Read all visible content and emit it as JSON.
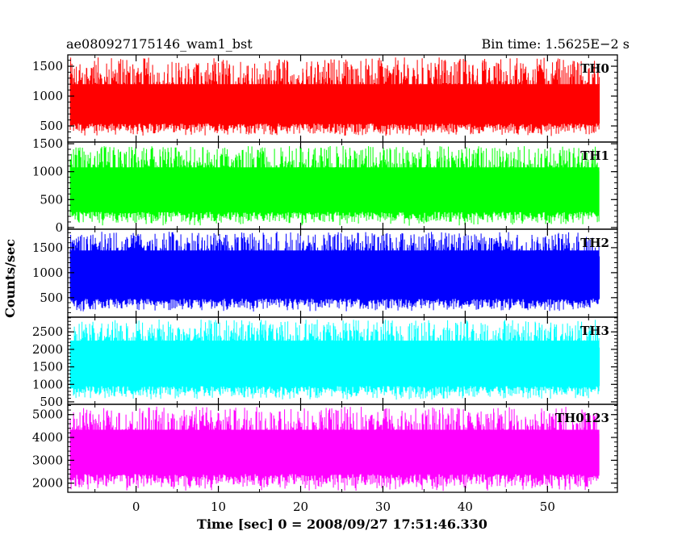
{
  "header": {
    "left_title": "ae080927175146_wam1_bst",
    "right_title": "Bin time: 1.5625E−2 s"
  },
  "axes": {
    "ylabel": "Counts/sec",
    "xlabel": "Time [sec] 0 = 2008/09/27 17:51:46.330"
  },
  "chart_data": {
    "type": "line",
    "title": "ae080927175146_wam1_bst",
    "subtitle": "Bin time: 1.5625E−2 s",
    "xlabel": "Time [sec] 0 = 2008/09/27 17:51:46.330",
    "ylabel": "Counts/sec",
    "xlim": [
      -8.3,
      58.5
    ],
    "data_xrange": [
      -8.0,
      56.3
    ],
    "x_ticks": [
      "0",
      "10",
      "20",
      "30",
      "40",
      "50"
    ],
    "x_tick_values": [
      0,
      10,
      20,
      30,
      40,
      50
    ],
    "grid": false,
    "panels": [
      {
        "name": "TH0",
        "color": "#ff0000",
        "ylim": [
          230,
          1690
        ],
        "y_ticks": [
          "500",
          "1000",
          "1500"
        ],
        "y_tick_values": [
          500,
          1000,
          1500
        ],
        "mean": 800,
        "low_range": [
          330,
          540
        ],
        "high_range": [
          1050,
          1650
        ]
      },
      {
        "name": "TH1",
        "color": "#00ff00",
        "ylim": [
          -30,
          1530
        ],
        "y_ticks": [
          "0",
          "500",
          "1000",
          "1500"
        ],
        "y_tick_values": [
          0,
          500,
          1000,
          1500
        ],
        "mean": 650,
        "low_range": [
          30,
          280
        ],
        "high_range": [
          950,
          1460
        ]
      },
      {
        "name": "TH2",
        "color": "#0000ff",
        "ylim": [
          110,
          1870
        ],
        "y_ticks": [
          "500",
          "1000",
          "1500"
        ],
        "y_tick_values": [
          500,
          1000,
          1500
        ],
        "mean": 1050,
        "low_range": [
          220,
          480
        ],
        "high_range": [
          1320,
          1820
        ]
      },
      {
        "name": "TH3",
        "color": "#00ffff",
        "ylim": [
          430,
          2920
        ],
        "y_ticks": [
          "500",
          "1000",
          "1500",
          "2000",
          "2500"
        ],
        "y_tick_values": [
          500,
          1000,
          1500,
          2000,
          2500
        ],
        "mean": 1500,
        "low_range": [
          560,
          950
        ],
        "high_range": [
          2050,
          2850
        ]
      },
      {
        "name": "TH0123",
        "color": "#ff00ff",
        "ylim": [
          1600,
          5450
        ],
        "y_ticks": [
          "2000",
          "3000",
          "4000",
          "5000"
        ],
        "y_tick_values": [
          2000,
          3000,
          4000,
          5000
        ],
        "mean": 3200,
        "low_range": [
          1650,
          2400
        ],
        "high_range": [
          4000,
          5350
        ]
      }
    ]
  }
}
